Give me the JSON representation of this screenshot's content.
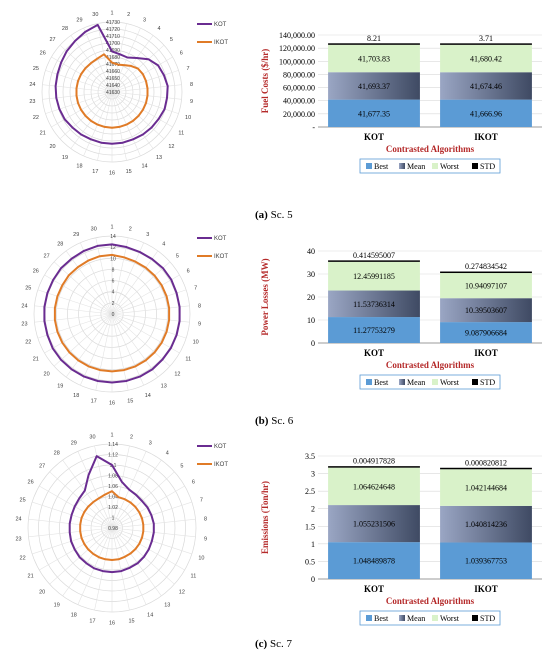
{
  "captions": [
    {
      "letter": "(a)",
      "text": "Sc. 5"
    },
    {
      "letter": "(b)",
      "text": "Sc. 6"
    },
    {
      "letter": "(c)",
      "text": "Sc. 7"
    }
  ],
  "colors": {
    "kot": "#6a2c91",
    "ikot": "#e07b27",
    "best": "#5b9bd5",
    "mean": "#7f8cae",
    "worst": "#d9f2c9",
    "std": "#000000",
    "axis_title": "#b52a2a",
    "legend_border": "#5b9bd5"
  },
  "chart_data": [
    {
      "type": "radar",
      "categories": [
        "1",
        "2",
        "3",
        "4",
        "5",
        "6",
        "7",
        "8",
        "9",
        "10",
        "11",
        "12",
        "13",
        "14",
        "15",
        "16",
        "17",
        "18",
        "19",
        "20",
        "21",
        "22",
        "23",
        "24",
        "25",
        "26",
        "27",
        "28",
        "29",
        "30"
      ],
      "radial_ticks": [
        "41630",
        "41640",
        "41650",
        "41660",
        "41670",
        "41680",
        "41690",
        "41700",
        "41710",
        "41720",
        "41730"
      ],
      "range": [
        41630,
        41730
      ],
      "series": [
        {
          "name": "KOT",
          "values": [
            41688,
            41685,
            41684,
            41690,
            41700,
            41706,
            41708,
            41710,
            41709,
            41709,
            41707,
            41706,
            41705,
            41704,
            41704,
            41704,
            41704,
            41704,
            41705,
            41706,
            41708,
            41709,
            41710,
            41711,
            41712,
            41714,
            41717,
            41720,
            41724,
            41728
          ]
        },
        {
          "name": "IKOT",
          "values": [
            41672,
            41670,
            41672,
            41676,
            41680,
            41681,
            41681,
            41681,
            41681,
            41681,
            41681,
            41681,
            41681,
            41681,
            41681,
            41681,
            41681,
            41681,
            41681,
            41681,
            41681,
            41681,
            41681,
            41681,
            41681,
            41681,
            41681,
            41681,
            41682,
            41685
          ]
        }
      ]
    },
    {
      "type": "bar",
      "stacked": true,
      "categories": [
        "KOT",
        "IKOT"
      ],
      "ylabel": "Fuel Costs ($/hr)",
      "xlabel": "Contrasted Algorithms",
      "yticks": [
        "-",
        "20,000.00",
        "40,000.00",
        "60,000.00",
        "80,000.00",
        "100,000.00",
        "120,000.00",
        "140,000.00"
      ],
      "ylim": [
        0,
        140000
      ],
      "series": [
        {
          "name": "Best",
          "values": [
            41677.35,
            41666.96
          ],
          "labels": [
            "41,677.35",
            "41,666.96"
          ]
        },
        {
          "name": "Mean",
          "values": [
            41693.37,
            41674.46
          ],
          "labels": [
            "41,693.37",
            "41,674.46"
          ]
        },
        {
          "name": "Worst",
          "values": [
            41703.83,
            41680.42
          ],
          "labels": [
            "41,703.83",
            "41,680.42"
          ]
        },
        {
          "name": "STD",
          "values": [
            8.21,
            3.71
          ],
          "labels": [
            "8.21",
            "3.71"
          ]
        }
      ]
    },
    {
      "type": "radar",
      "categories": [
        "1",
        "2",
        "3",
        "4",
        "5",
        "6",
        "7",
        "8",
        "9",
        "10",
        "11",
        "12",
        "13",
        "14",
        "15",
        "16",
        "17",
        "18",
        "19",
        "20",
        "21",
        "22",
        "23",
        "24",
        "25",
        "26",
        "27",
        "28",
        "29",
        "30"
      ],
      "radial_ticks": [
        "0",
        "2",
        "4",
        "6",
        "8",
        "10",
        "12",
        "14"
      ],
      "range": [
        0,
        14
      ],
      "series": [
        {
          "name": "KOT",
          "values": [
            12.5,
            12.3,
            12.2,
            12.2,
            12.3,
            12.3,
            12.2,
            12.2,
            12.2,
            12.2,
            12.2,
            12.2,
            12.3,
            12.3,
            12.3,
            12.3,
            12.3,
            12.3,
            12.3,
            12.3,
            12.3,
            12.2,
            12.2,
            12.2,
            12.2,
            12.2,
            12.3,
            12.3,
            12.4,
            12.5
          ]
        },
        {
          "name": "IKOT",
          "values": [
            10.6,
            10.4,
            10.3,
            10.3,
            10.3,
            10.3,
            10.3,
            10.3,
            10.3,
            10.3,
            10.3,
            10.3,
            10.3,
            10.3,
            10.3,
            10.3,
            10.3,
            10.3,
            10.3,
            10.3,
            10.3,
            10.3,
            10.3,
            10.3,
            10.3,
            10.3,
            10.4,
            10.4,
            10.5,
            10.6
          ]
        }
      ]
    },
    {
      "type": "bar",
      "stacked": true,
      "categories": [
        "KOT",
        "IKOT"
      ],
      "ylabel": "Power Losses (MW)",
      "xlabel": "Contrasted Algorithms",
      "yticks": [
        "0",
        "10",
        "20",
        "30",
        "40"
      ],
      "ylim": [
        0,
        40
      ],
      "series": [
        {
          "name": "Best",
          "values": [
            11.27753279,
            9.087906684
          ],
          "labels": [
            "11.27753279",
            "9.087906684"
          ]
        },
        {
          "name": "Mean",
          "values": [
            11.53736314,
            10.39503607
          ],
          "labels": [
            "11.53736314",
            "10.39503607"
          ]
        },
        {
          "name": "Worst",
          "values": [
            12.45991185,
            10.94097107
          ],
          "labels": [
            "12.45991185",
            "10.94097107"
          ]
        },
        {
          "name": "STD",
          "values": [
            0.414595007,
            0.274834542
          ],
          "labels": [
            "0.414595007",
            "0.274834542"
          ]
        }
      ]
    },
    {
      "type": "radar",
      "categories": [
        "1",
        "2",
        "3",
        "4",
        "5",
        "6",
        "7",
        "8",
        "9",
        "10",
        "11",
        "12",
        "13",
        "14",
        "15",
        "16",
        "17",
        "18",
        "19",
        "20",
        "21",
        "22",
        "23",
        "24",
        "25",
        "26",
        "27",
        "28",
        "29",
        "30"
      ],
      "radial_ticks": [
        "0.98",
        "1",
        "1.02",
        "1.04",
        "1.06",
        "1.08",
        "1.1",
        "1.12",
        "1.14"
      ],
      "range": [
        0.98,
        1.14
      ],
      "series": [
        {
          "name": "KOT",
          "values": [
            1.1,
            1.07,
            1.06,
            1.058,
            1.057,
            1.058,
            1.059,
            1.06,
            1.06,
            1.06,
            1.061,
            1.062,
            1.063,
            1.063,
            1.064,
            1.064,
            1.064,
            1.064,
            1.063,
            1.063,
            1.062,
            1.062,
            1.061,
            1.061,
            1.061,
            1.062,
            1.064,
            1.068,
            1.09,
            1.12
          ]
        },
        {
          "name": "IKOT",
          "values": [
            1.05,
            1.04,
            1.04,
            1.04,
            1.04,
            1.04,
            1.04,
            1.04,
            1.04,
            1.04,
            1.04,
            1.04,
            1.04,
            1.04,
            1.041,
            1.041,
            1.041,
            1.041,
            1.041,
            1.041,
            1.041,
            1.041,
            1.041,
            1.041,
            1.041,
            1.041,
            1.041,
            1.041,
            1.042,
            1.045
          ]
        }
      ]
    },
    {
      "type": "bar",
      "stacked": true,
      "categories": [
        "KOT",
        "IKOT"
      ],
      "ylabel": "Emissions (Ton/hr)",
      "xlabel": "Contrasted Algorithms",
      "yticks": [
        "0",
        "0.5",
        "1",
        "1.5",
        "2",
        "2.5",
        "3",
        "3.5"
      ],
      "ylim": [
        0,
        3.5
      ],
      "series": [
        {
          "name": "Best",
          "values": [
            1.048489878,
            1.039367753
          ],
          "labels": [
            "1.048489878",
            "1.039367753"
          ]
        },
        {
          "name": "Mean",
          "values": [
            1.055231506,
            1.040814236
          ],
          "labels": [
            "1.055231506",
            "1.040814236"
          ]
        },
        {
          "name": "Worst",
          "values": [
            1.064624648,
            1.042144684
          ],
          "labels": [
            "1.064624648",
            "1.042144684"
          ]
        },
        {
          "name": "STD",
          "values": [
            0.004917828,
            0.000820812
          ],
          "labels": [
            "0.004917828",
            "0.000820812"
          ]
        }
      ]
    }
  ]
}
